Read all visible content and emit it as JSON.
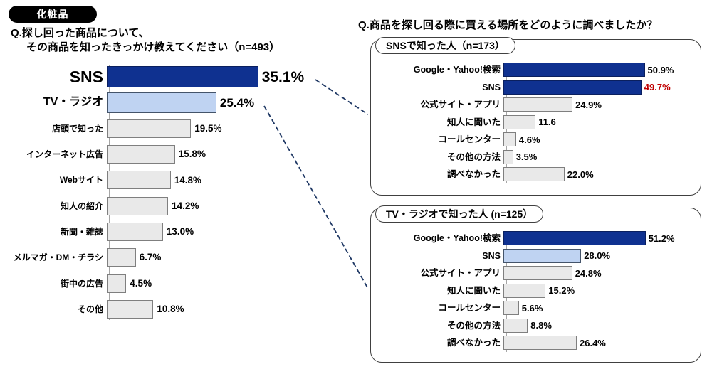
{
  "page": {
    "category_badge": "化粧品",
    "left_question_line1": "Q.探し回った商品について、",
    "left_question_line2": "その商品を知ったきっかけ教えてください（n=493）",
    "right_question": "Q.商品を探し回る際に買える場所をどのように調べましたか？"
  },
  "colors": {
    "navy": "#0F3190",
    "navy_border": "#0A1F5E",
    "light_blue": "#BFD3F2",
    "light_blue_border": "#44546A",
    "gray": "#E9E9E9",
    "gray_border": "#7F7F7F",
    "value_red": "#C00000",
    "connector": "#1F3864"
  },
  "chart_data": [
    {
      "type": "bar",
      "orientation": "horizontal",
      "title": "Q.探し回った商品について、その商品を知ったきっかけ教えてください（n=493）",
      "n": 493,
      "unit": "%",
      "xlim": [
        0,
        40
      ],
      "grid": false,
      "data_labels": true,
      "rows": [
        {
          "label": "SNS",
          "value": 35.1,
          "display": "35.1%",
          "fill": "navy",
          "emphasis": "xl"
        },
        {
          "label": "TV・ラジオ",
          "value": 25.4,
          "display": "25.4%",
          "fill": "light_blue",
          "emphasis": "lg"
        },
        {
          "label": "店頭で知った",
          "value": 19.5,
          "display": "19.5%",
          "fill": "gray"
        },
        {
          "label": "インターネット広告",
          "value": 15.8,
          "display": "15.8%",
          "fill": "gray"
        },
        {
          "label": "Webサイト",
          "value": 14.8,
          "display": "14.8%",
          "fill": "gray"
        },
        {
          "label": "知人の紹介",
          "value": 14.2,
          "display": "14.2%",
          "fill": "gray"
        },
        {
          "label": "新聞・雑誌",
          "value": 13.0,
          "display": "13.0%",
          "fill": "gray"
        },
        {
          "label": "メルマガ・DM・チラシ",
          "value": 6.7,
          "display": "6.7%",
          "fill": "gray"
        },
        {
          "label": "街中の広告",
          "value": 4.5,
          "display": "4.5%",
          "fill": "gray"
        },
        {
          "label": "その他",
          "value": 10.8,
          "display": "10.8%",
          "fill": "gray"
        }
      ]
    },
    {
      "type": "bar",
      "orientation": "horizontal",
      "group_label": "SNSで知った人（n=173）",
      "title": "Q.商品を探し回る際に買える場所をどのように調べましたか？",
      "n": 173,
      "unit": "%",
      "xlim": [
        0,
        60
      ],
      "grid": false,
      "data_labels": true,
      "rows": [
        {
          "label": "Google・Yahoo!検索",
          "value": 50.9,
          "display": "50.9%",
          "fill": "navy"
        },
        {
          "label": "SNS",
          "value": 49.7,
          "display": "49.7%",
          "fill": "navy",
          "value_color": "value_red"
        },
        {
          "label": "公式サイト・アプリ",
          "value": 24.9,
          "display": "24.9%",
          "fill": "gray"
        },
        {
          "label": "知人に聞いた",
          "value": 11.6,
          "display": "11.6",
          "fill": "gray"
        },
        {
          "label": "コールセンター",
          "value": 4.6,
          "display": "4.6%",
          "fill": "gray"
        },
        {
          "label": "その他の方法",
          "value": 3.5,
          "display": "3.5%",
          "fill": "gray"
        },
        {
          "label": "調べなかった",
          "value": 22.0,
          "display": "22.0%",
          "fill": "gray"
        }
      ]
    },
    {
      "type": "bar",
      "orientation": "horizontal",
      "group_label": "TV・ラジオで知った人 (n=125）",
      "title": "Q.商品を探し回る際に買える場所をどのように調べましたか？",
      "n": 125,
      "unit": "%",
      "xlim": [
        0,
        60
      ],
      "grid": false,
      "data_labels": true,
      "rows": [
        {
          "label": "Google・Yahoo!検索",
          "value": 51.2,
          "display": "51.2%",
          "fill": "navy"
        },
        {
          "label": "SNS",
          "value": 28.0,
          "display": "28.0%",
          "fill": "light_blue"
        },
        {
          "label": "公式サイト・アプリ",
          "value": 24.8,
          "display": "24.8%",
          "fill": "gray"
        },
        {
          "label": "知人に聞いた",
          "value": 15.2,
          "display": "15.2%",
          "fill": "gray"
        },
        {
          "label": "コールセンター",
          "value": 5.6,
          "display": "5.6%",
          "fill": "gray"
        },
        {
          "label": "その他の方法",
          "value": 8.8,
          "display": "8.8%",
          "fill": "gray"
        },
        {
          "label": "調べなかった",
          "value": 26.4,
          "display": "26.4%",
          "fill": "gray"
        }
      ]
    }
  ]
}
